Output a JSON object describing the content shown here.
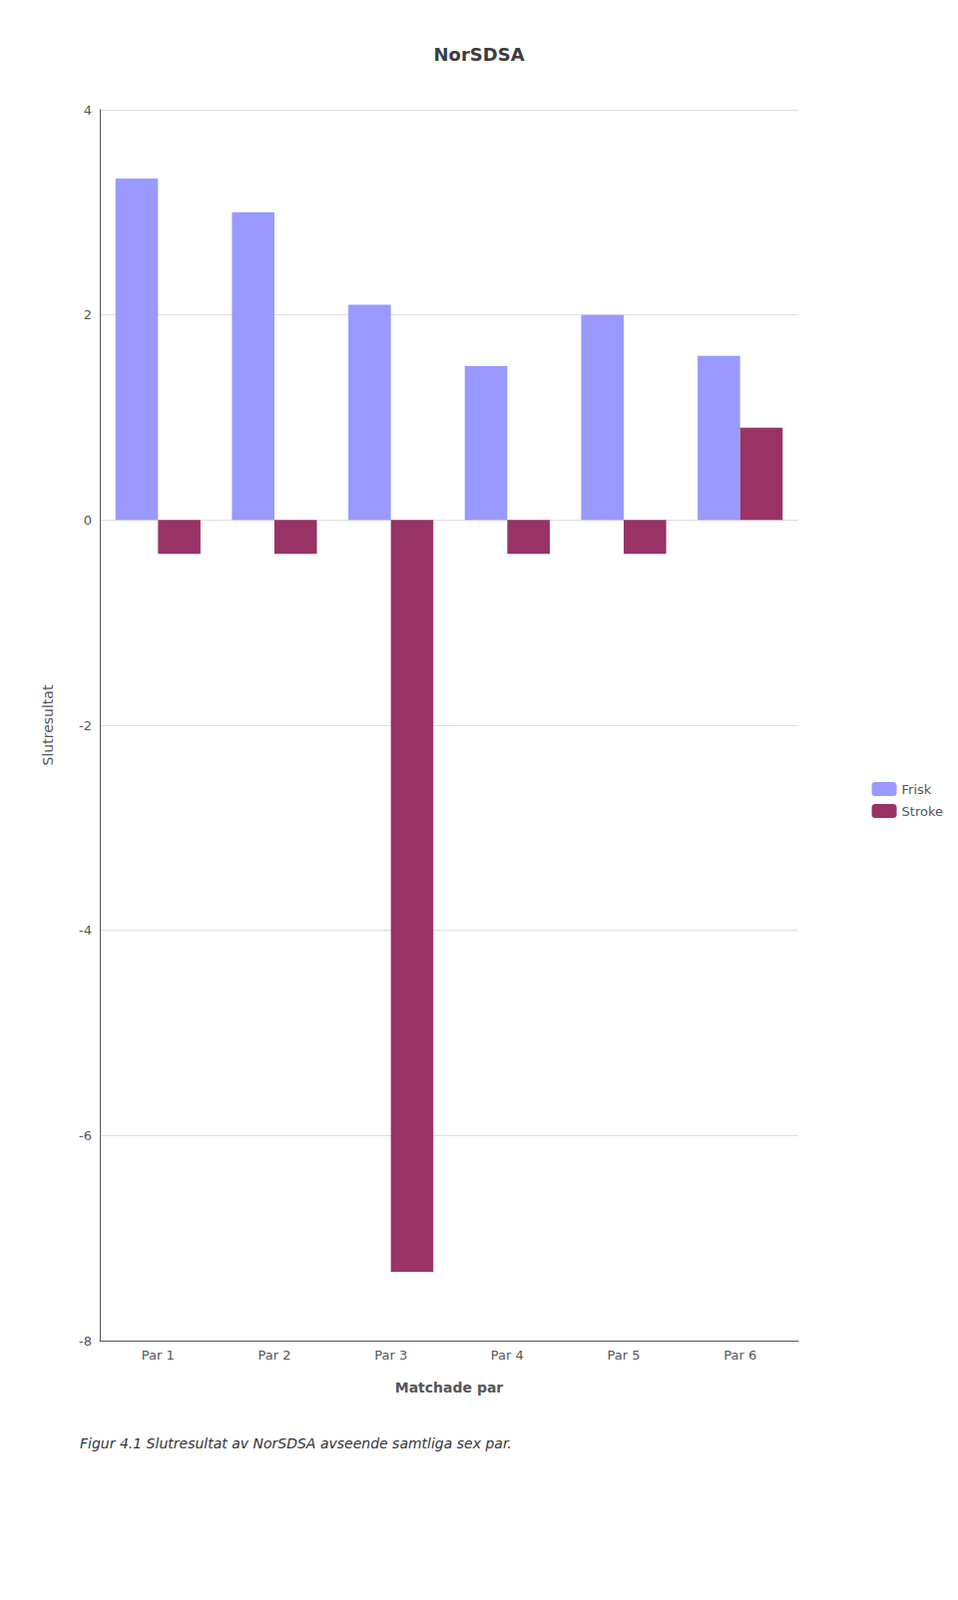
{
  "chart_data": {
    "type": "bar",
    "title": "NorSDSA",
    "xlabel": "Matchade par",
    "ylabel": "Slutresultat",
    "categories": [
      "Par 1",
      "Par 2",
      "Par 3",
      "Par 4",
      "Par 5",
      "Par 6"
    ],
    "series": [
      {
        "name": "Frisk",
        "color": "#9999FF",
        "values": [
          3.33,
          3.0,
          2.1,
          1.5,
          2.0,
          1.6
        ]
      },
      {
        "name": "Stroke",
        "color": "#993366",
        "values": [
          -0.33,
          -0.33,
          -7.33,
          -0.33,
          -0.33,
          0.9
        ]
      }
    ],
    "ylim": [
      -8,
      4
    ],
    "yticks": [
      -8,
      -6,
      -4,
      -2,
      0,
      2,
      4
    ],
    "grid": true,
    "legend": "right",
    "annotations": [
      "Figur 4.1 Slutresultat av NorSDSA avseende samtliga sex par."
    ]
  }
}
